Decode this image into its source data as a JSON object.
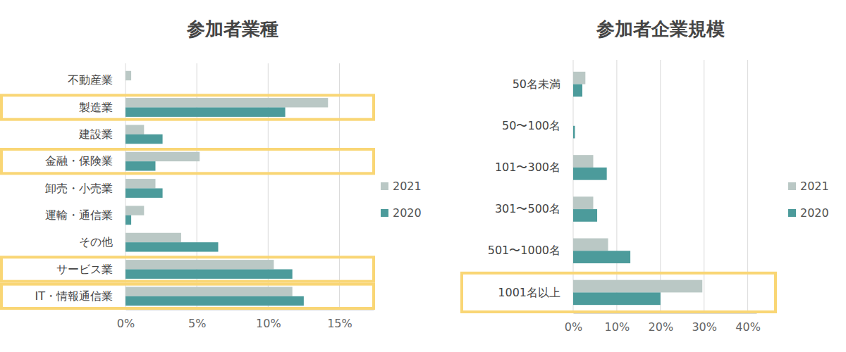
{
  "chart_data": [
    {
      "type": "bar",
      "title": "参加者業種",
      "orientation": "horizontal",
      "grid": true,
      "legend": "right",
      "categories": [
        "不動産業",
        "製造業",
        "建設業",
        "金融・保険業",
        "卸売・小売業",
        "運輸・通信業",
        "その他",
        "サービス業",
        "IT・情報通信業"
      ],
      "series": [
        {
          "name": "2021",
          "color": "#bac8c5",
          "values": [
            0.4,
            14.2,
            1.3,
            5.2,
            2.1,
            1.3,
            3.9,
            10.4,
            11.7
          ]
        },
        {
          "name": "2020",
          "color": "#4c9b9b",
          "values": [
            0,
            11.2,
            2.6,
            2.1,
            2.6,
            0.4,
            6.5,
            11.7,
            12.5
          ]
        }
      ],
      "xlim": [
        0,
        17.4
      ],
      "xticks": [
        {
          "value": 0,
          "label": "0%"
        },
        {
          "value": 5,
          "label": "5%"
        },
        {
          "value": 10,
          "label": "10%"
        },
        {
          "value": 15,
          "label": "15%"
        }
      ]
    },
    {
      "type": "bar",
      "title": "参加者企業規模",
      "orientation": "horizontal",
      "grid": true,
      "legend": "right",
      "categories": [
        "50名未満",
        "50〜100名",
        "101〜300名",
        "301〜500名",
        "501〜1000名",
        "1001名以上"
      ],
      "series": [
        {
          "name": "2021",
          "color": "#bac8c5",
          "values": [
            2.8,
            0,
            4.6,
            4.6,
            8.0,
            29.6
          ]
        },
        {
          "name": "2020",
          "color": "#4c9b9b",
          "values": [
            2.1,
            0.4,
            7.7,
            5.5,
            13.1,
            20.0
          ]
        }
      ],
      "xlim": [
        0,
        42
      ],
      "xticks": [
        {
          "value": 0,
          "label": "0%"
        },
        {
          "value": 10,
          "label": "10%"
        },
        {
          "value": 20,
          "label": "20%"
        },
        {
          "value": 30,
          "label": "30%"
        },
        {
          "value": 40,
          "label": "40%"
        }
      ]
    }
  ]
}
